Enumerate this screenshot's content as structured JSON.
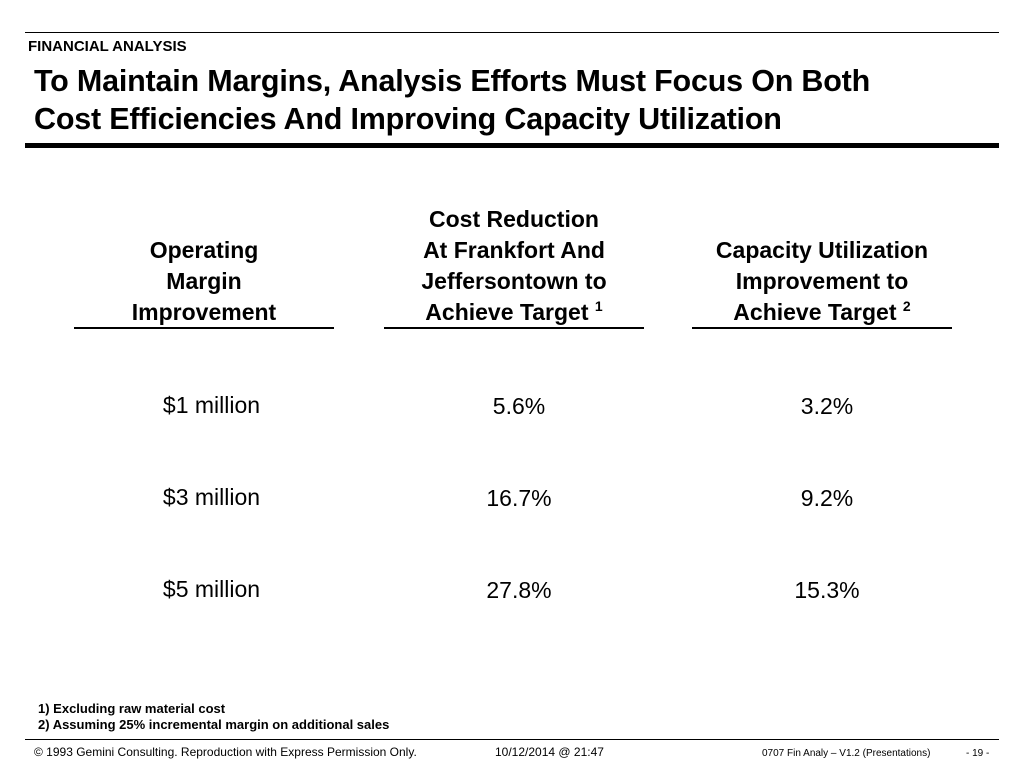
{
  "header": {
    "section": "FINANCIAL ANALYSIS",
    "title_line1": "To Maintain Margins, Analysis Efforts Must Focus On Both",
    "title_line2": "Cost Efficiencies And Improving Capacity Utilization"
  },
  "table": {
    "columns": [
      {
        "lines": [
          "Operating",
          "Margin",
          "Improvement"
        ],
        "sup": ""
      },
      {
        "lines": [
          "Cost Reduction",
          "At Frankfort And",
          "Jeffersontown  to",
          "Achieve Target"
        ],
        "sup": "1"
      },
      {
        "lines": [
          "Capacity Utilization",
          "Improvement to",
          "Achieve Target"
        ],
        "sup": "2"
      }
    ],
    "rows": [
      [
        "$1 million",
        "5.6%",
        "3.2%"
      ],
      [
        "$3 million",
        "16.7%",
        "9.2%"
      ],
      [
        "$5 million",
        "27.8%",
        "15.3%"
      ]
    ]
  },
  "footnotes": [
    "1) Excluding raw material cost",
    "2) Assuming 25% incremental margin on additional sales"
  ],
  "footer": {
    "copyright": "© 1993 Gemini Consulting. Reproduction with Express Permission Only.",
    "datetime": "10/12/2014 @ 21:47",
    "doc_id": "0707 Fin Analy – V1.2 (Presentations)",
    "page": "- 19 -"
  }
}
